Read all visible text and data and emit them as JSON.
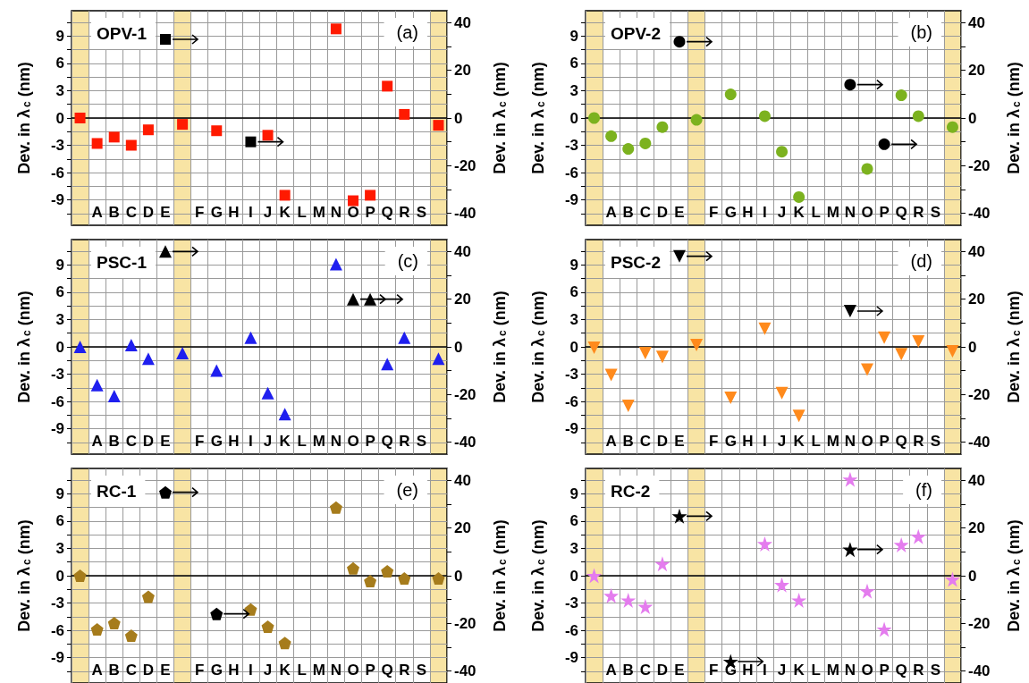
{
  "chart_data": [
    {
      "type": "scatter",
      "title": "OPV-1",
      "annotations": [
        "(a)"
      ],
      "ylabel": "Dev. in λ$_{c}$ (nm)",
      "y2label": "Dev. in λ$_{c}$ (nm)",
      "marker": "square",
      "grid": true,
      "categories": [
        null,
        "A",
        "B",
        "C",
        "D",
        "E",
        null,
        "F",
        "G",
        "H",
        "I",
        "J",
        "K",
        "L",
        "M",
        "N",
        "O",
        "P",
        "Q",
        "R",
        "S",
        null
      ],
      "ylim": [
        -11.8,
        11.8
      ],
      "yticks": [
        -9,
        -6,
        -3,
        0,
        3,
        6,
        9,
        {
          "value": -10.5,
          "label": null
        },
        {
          "value": -7.5,
          "label": null
        },
        {
          "value": -4.5,
          "label": null
        },
        {
          "value": -1.5,
          "label": null
        },
        {
          "value": 1.5,
          "label": null
        },
        {
          "value": 4.5,
          "label": null
        },
        {
          "value": 7.5,
          "label": null
        },
        {
          "value": 10.5,
          "label": null
        }
      ],
      "y2lim": [
        -45,
        45
      ],
      "y2ticks": [
        -40,
        -20,
        0,
        20,
        40,
        {
          "value": -30,
          "label": null
        },
        {
          "value": -10,
          "label": null
        },
        {
          "value": 10,
          "label": null
        },
        {
          "value": 30,
          "label": null
        }
      ],
      "ref_lines": [
        {
          "axis": "y",
          "value": 0,
          "color": "#000000"
        }
      ],
      "series": [
        {
          "color": "#ff1a00",
          "values": [
            0,
            -2.8,
            -2.1,
            -3.0,
            -1.3,
            null,
            -0.7,
            null,
            -1.4,
            null,
            null,
            -1.9,
            -8.5,
            null,
            null,
            9.8,
            -9.1,
            -8.5,
            3.5,
            0.4,
            null,
            -0.8
          ]
        },
        {
          "color": "#000000",
          "axis": "y2",
          "x": [
            "E",
            "I"
          ],
          "values": [
            33,
            -10
          ]
        }
      ]
    },
    {
      "type": "scatter",
      "title": "OPV-2",
      "annotations": [
        "(b)"
      ],
      "ylabel": "Dev. in λ$_{c}$ (nm)",
      "y2label": "Dev. in λ$_{c}$ (nm)",
      "marker": "circle",
      "grid": true,
      "categories": [
        null,
        "A",
        "B",
        "C",
        "D",
        "E",
        null,
        "F",
        "G",
        "H",
        "I",
        "J",
        "K",
        "L",
        "M",
        "N",
        "O",
        "P",
        "Q",
        "R",
        "S",
        null
      ],
      "ylim": [
        -11.8,
        11.8
      ],
      "yticks": [
        -9,
        -6,
        -3,
        0,
        3,
        6,
        9,
        {
          "value": -10.5,
          "label": null
        },
        {
          "value": -7.5,
          "label": null
        },
        {
          "value": -4.5,
          "label": null
        },
        {
          "value": -1.5,
          "label": null
        },
        {
          "value": 1.5,
          "label": null
        },
        {
          "value": 4.5,
          "label": null
        },
        {
          "value": 7.5,
          "label": null
        },
        {
          "value": 10.5,
          "label": null
        }
      ],
      "y2lim": [
        -45,
        45
      ],
      "y2ticks": [
        -40,
        -20,
        0,
        20,
        40,
        {
          "value": -30,
          "label": null
        },
        {
          "value": -10,
          "label": null
        },
        {
          "value": 10,
          "label": null
        },
        {
          "value": 30,
          "label": null
        }
      ],
      "ref_lines": [
        {
          "axis": "y",
          "value": 0,
          "color": "#000000"
        }
      ],
      "series": [
        {
          "color": "#7cb21f",
          "values": [
            0,
            -2.0,
            -3.4,
            -2.8,
            -1.0,
            null,
            -0.2,
            null,
            2.6,
            null,
            0.2,
            -3.7,
            -8.7,
            null,
            null,
            null,
            -5.6,
            null,
            2.5,
            0.2,
            null,
            -1.0
          ]
        },
        {
          "color": "#000000",
          "axis": "y2",
          "x": [
            "E",
            "N",
            "P"
          ],
          "values": [
            32,
            14,
            -11
          ]
        }
      ]
    },
    {
      "type": "scatter",
      "title": "PSC-1",
      "annotations": [
        "(c)"
      ],
      "ylabel": "Dev. in λ$_{c}$ (nm)",
      "y2label": "Dev. in λ$_{c}$ (nm)",
      "marker": "triangle",
      "grid": true,
      "categories": [
        null,
        "A",
        "B",
        "C",
        "D",
        "E",
        null,
        "F",
        "G",
        "H",
        "I",
        "J",
        "K",
        "L",
        "M",
        "N",
        "O",
        "P",
        "Q",
        "R",
        "S",
        null
      ],
      "ylim": [
        -11.8,
        11.8
      ],
      "yticks": [
        -9,
        -6,
        -3,
        0,
        3,
        6,
        9,
        {
          "value": -10.5,
          "label": null
        },
        {
          "value": -7.5,
          "label": null
        },
        {
          "value": -4.5,
          "label": null
        },
        {
          "value": -1.5,
          "label": null
        },
        {
          "value": 1.5,
          "label": null
        },
        {
          "value": 4.5,
          "label": null
        },
        {
          "value": 7.5,
          "label": null
        },
        {
          "value": 10.5,
          "label": null
        }
      ],
      "y2lim": [
        -45,
        45
      ],
      "y2ticks": [
        -40,
        -20,
        0,
        20,
        40,
        {
          "value": -30,
          "label": null
        },
        {
          "value": -10,
          "label": null
        },
        {
          "value": 10,
          "label": null
        },
        {
          "value": 30,
          "label": null
        }
      ],
      "ref_lines": [
        {
          "axis": "y",
          "value": 0,
          "color": "#000000"
        }
      ],
      "series": [
        {
          "color": "#1f1fef",
          "values": [
            0,
            -4.2,
            -5.4,
            0.2,
            -1.3,
            null,
            -0.7,
            null,
            -2.6,
            null,
            1.0,
            -5.1,
            -7.4,
            null,
            null,
            9.1,
            null,
            null,
            -1.9,
            1.0,
            null,
            -1.3
          ]
        },
        {
          "color": "#000000",
          "axis": "y2",
          "x": [
            "E",
            "O",
            "P"
          ],
          "values": [
            40,
            20,
            20
          ]
        }
      ]
    },
    {
      "type": "scatter",
      "title": "PSC-2",
      "annotations": [
        "(d)"
      ],
      "ylabel": "Dev. in λ$_{c}$ (nm)",
      "y2label": "Dev. in λ$_{c}$ (nm)",
      "marker": "triangle-down",
      "grid": true,
      "categories": [
        null,
        "A",
        "B",
        "C",
        "D",
        "E",
        null,
        "F",
        "G",
        "H",
        "I",
        "J",
        "K",
        "L",
        "M",
        "N",
        "O",
        "P",
        "Q",
        "R",
        "S",
        null
      ],
      "ylim": [
        -11.8,
        11.8
      ],
      "yticks": [
        -9,
        -6,
        -3,
        0,
        3,
        6,
        9,
        {
          "value": -10.5,
          "label": null
        },
        {
          "value": -7.5,
          "label": null
        },
        {
          "value": -4.5,
          "label": null
        },
        {
          "value": -1.5,
          "label": null
        },
        {
          "value": 1.5,
          "label": null
        },
        {
          "value": 4.5,
          "label": null
        },
        {
          "value": 7.5,
          "label": null
        },
        {
          "value": 10.5,
          "label": null
        }
      ],
      "y2lim": [
        -45,
        45
      ],
      "y2ticks": [
        -40,
        -20,
        0,
        20,
        40,
        {
          "value": -30,
          "label": null
        },
        {
          "value": -10,
          "label": null
        },
        {
          "value": 10,
          "label": null
        },
        {
          "value": 30,
          "label": null
        }
      ],
      "ref_lines": [
        {
          "axis": "y",
          "value": 0,
          "color": "#000000"
        }
      ],
      "series": [
        {
          "color": "#ff8a1c",
          "values": [
            -0.1,
            -3.1,
            -6.5,
            -0.7,
            -1.1,
            null,
            0.2,
            null,
            -5.6,
            null,
            2.0,
            -5.1,
            -7.6,
            null,
            null,
            null,
            -2.5,
            1.0,
            -0.8,
            0.6,
            null,
            -0.5
          ]
        },
        {
          "color": "#000000",
          "axis": "y2",
          "x": [
            "E",
            "N"
          ],
          "values": [
            38,
            15
          ]
        }
      ]
    },
    {
      "type": "scatter",
      "title": "RC-1",
      "annotations": [
        "(e)"
      ],
      "ylabel": "Dev. in λ$_{c}$ (nm)",
      "y2label": "Dev. in λ$_{c}$ (nm)",
      "grid": true,
      "categories": [
        null,
        "A",
        "B",
        "C",
        "D",
        "E",
        null,
        "F",
        "G",
        "H",
        "I",
        "J",
        "K",
        "L",
        "M",
        "N",
        "O",
        "P",
        "Q",
        "R",
        "S",
        null
      ],
      "ylim": [
        -11.8,
        11.8
      ],
      "yticks": [
        -9,
        -6,
        -3,
        0,
        3,
        6,
        9,
        {
          "value": -10.5,
          "label": null
        },
        {
          "value": -7.5,
          "label": null
        },
        {
          "value": -4.5,
          "label": null
        },
        {
          "value": -1.5,
          "label": null
        },
        {
          "value": 1.5,
          "label": null
        },
        {
          "value": 4.5,
          "label": null
        },
        {
          "value": 7.5,
          "label": null
        },
        {
          "value": 10.5,
          "label": null
        }
      ],
      "y2lim": [
        -45,
        45
      ],
      "y2ticks": [
        -40,
        -20,
        0,
        20,
        40,
        {
          "value": -30,
          "label": null
        },
        {
          "value": -10,
          "label": null
        },
        {
          "value": 10,
          "label": null
        },
        {
          "value": 30,
          "label": null
        }
      ],
      "ref_lines": [
        {
          "axis": "y",
          "value": 0,
          "color": "#000000"
        }
      ],
      "series": [
        {
          "color": "#a67c1c",
          "values": [
            0,
            -5.9,
            -5.2,
            -6.6,
            -2.3,
            null,
            null,
            null,
            null,
            null,
            -3.7,
            -5.6,
            -7.4,
            null,
            null,
            7.5,
            0.8,
            -0.6,
            0.5,
            -0.3,
            null,
            -0.3
          ]
        },
        {
          "color": "#000000",
          "axis": "y2",
          "x": [
            "E",
            "G"
          ],
          "values": [
            35,
            -16
          ]
        }
      ]
    },
    {
      "type": "scatter",
      "title": "RC-2",
      "annotations": [
        "(f)"
      ],
      "ylabel": "Dev. in λ$_{c}$ (nm)",
      "y2label": "Dev. in λ$_{c}$ (nm)",
      "marker": "star",
      "grid": true,
      "categories": [
        null,
        "A",
        "B",
        "C",
        "D",
        "E",
        null,
        "F",
        "G",
        "H",
        "I",
        "J",
        "K",
        "L",
        "M",
        "N",
        "O",
        "P",
        "Q",
        "R",
        "S",
        null
      ],
      "ylim": [
        -11.8,
        11.8
      ],
      "yticks": [
        -9,
        -6,
        -3,
        0,
        3,
        6,
        9,
        {
          "value": -10.5,
          "label": null
        },
        {
          "value": -7.5,
          "label": null
        },
        {
          "value": -4.5,
          "label": null
        },
        {
          "value": -1.5,
          "label": null
        },
        {
          "value": 1.5,
          "label": null
        },
        {
          "value": 4.5,
          "label": null
        },
        {
          "value": 7.5,
          "label": null
        },
        {
          "value": 10.5,
          "label": null
        }
      ],
      "y2lim": [
        -45,
        45
      ],
      "y2ticks": [
        -40,
        -20,
        0,
        20,
        40,
        {
          "value": -30,
          "label": null
        },
        {
          "value": -10,
          "label": null
        },
        {
          "value": 10,
          "label": null
        },
        {
          "value": 30,
          "label": null
        }
      ],
      "ref_lines": [
        {
          "axis": "y",
          "value": 0,
          "color": "#000000"
        }
      ],
      "series": [
        {
          "color": "#e47cee",
          "values": [
            0,
            -2.2,
            -2.7,
            -3.4,
            1.3,
            null,
            null,
            null,
            null,
            null,
            3.5,
            -1.0,
            -2.7,
            null,
            null,
            10.6,
            -1.7,
            -5.9,
            3.4,
            4.3,
            null,
            -0.4
          ]
        },
        {
          "color": "#000000",
          "axis": "y2",
          "x": [
            "E",
            "G",
            "N"
          ],
          "values": [
            25,
            -36,
            11
          ]
        }
      ]
    }
  ]
}
